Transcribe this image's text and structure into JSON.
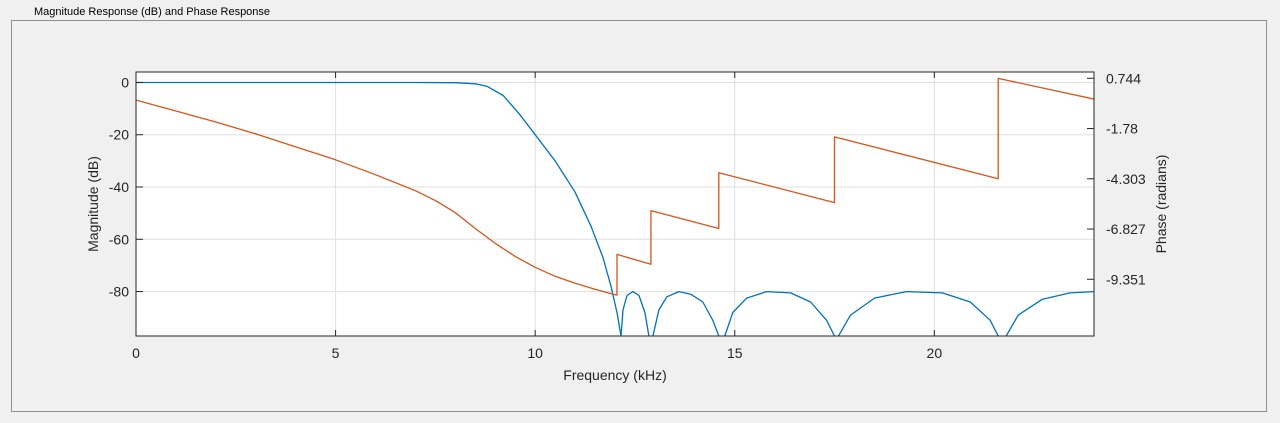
{
  "panel": {
    "title": "Magnitude Response (dB) and Phase Response"
  },
  "chart_data": {
    "type": "line",
    "title": "Magnitude Response (dB) and Phase Response",
    "xlabel": "Frequency (kHz)",
    "ylabel_left": "Magnitude (dB)",
    "ylabel_right": "Phase (radians)",
    "xlim": [
      0,
      24
    ],
    "ylim_left": [
      -97,
      4
    ],
    "ylim_right": [
      -12.2,
      1.06
    ],
    "grid": true,
    "x_ticks": [
      0,
      5,
      10,
      15,
      20
    ],
    "x_tick_labels": [
      "0",
      "5",
      "10",
      "15",
      "20"
    ],
    "y_ticks_left": [
      0,
      -20,
      -40,
      -60,
      -80
    ],
    "y_tick_labels_left": [
      "0",
      "-20",
      "-40",
      "-60",
      "-80"
    ],
    "y_ticks_right": [
      0.744,
      -1.78,
      -4.303,
      -6.827,
      -9.351
    ],
    "y_tick_labels_right": [
      "0.744",
      "-1.78",
      "-4.303",
      "-6.827",
      "-9.351"
    ],
    "series": [
      {
        "name": "Magnitude",
        "axis": "left",
        "color": "#0072bd",
        "segments": [
          [
            [
              0,
              0
            ],
            [
              7,
              0
            ],
            [
              8,
              -0.1
            ],
            [
              8.5,
              -0.5
            ],
            [
              8.8,
              -1.5
            ],
            [
              9.2,
              -5
            ],
            [
              9.6,
              -12
            ],
            [
              10,
              -20
            ],
            [
              10.5,
              -30
            ],
            [
              11,
              -42
            ],
            [
              11.4,
              -55
            ],
            [
              11.7,
              -67
            ],
            [
              11.9,
              -78
            ],
            [
              12.05,
              -88
            ],
            [
              12.15,
              -97
            ]
          ],
          [
            [
              12.15,
              -97
            ],
            [
              12.2,
              -87
            ],
            [
              12.3,
              -81.5
            ],
            [
              12.45,
              -80
            ],
            [
              12.6,
              -81.5
            ],
            [
              12.75,
              -88
            ],
            [
              12.85,
              -97
            ]
          ],
          [
            [
              12.95,
              -97
            ],
            [
              13.1,
              -87
            ],
            [
              13.3,
              -82
            ],
            [
              13.6,
              -80
            ],
            [
              13.9,
              -81
            ],
            [
              14.2,
              -84
            ],
            [
              14.45,
              -91
            ],
            [
              14.6,
              -97
            ]
          ],
          [
            [
              14.75,
              -97
            ],
            [
              14.95,
              -88
            ],
            [
              15.3,
              -82.5
            ],
            [
              15.8,
              -80
            ],
            [
              16.4,
              -80.5
            ],
            [
              16.9,
              -84
            ],
            [
              17.3,
              -91
            ],
            [
              17.5,
              -97
            ]
          ],
          [
            [
              17.6,
              -97
            ],
            [
              17.9,
              -89
            ],
            [
              18.5,
              -82.5
            ],
            [
              19.3,
              -80
            ],
            [
              20.2,
              -80.5
            ],
            [
              20.9,
              -84
            ],
            [
              21.4,
              -91
            ],
            [
              21.6,
              -97
            ]
          ],
          [
            [
              21.8,
              -97
            ],
            [
              22.1,
              -89
            ],
            [
              22.7,
              -83
            ],
            [
              23.4,
              -80.5
            ],
            [
              24,
              -80
            ]
          ]
        ]
      },
      {
        "name": "Phase",
        "axis": "right",
        "color": "#d95319",
        "segments": [
          [
            [
              0,
              -0.35
            ],
            [
              1,
              -0.9
            ],
            [
              2,
              -1.45
            ],
            [
              3,
              -2.05
            ],
            [
              4,
              -2.7
            ],
            [
              5,
              -3.35
            ],
            [
              6,
              -4.1
            ],
            [
              7,
              -4.9
            ],
            [
              7.5,
              -5.4
            ],
            [
              8,
              -6.0
            ],
            [
              8.5,
              -6.8
            ],
            [
              9,
              -7.55
            ],
            [
              9.5,
              -8.2
            ],
            [
              10,
              -8.75
            ],
            [
              10.5,
              -9.2
            ],
            [
              11,
              -9.55
            ],
            [
              11.5,
              -9.85
            ],
            [
              12.05,
              -10.15
            ]
          ],
          [
            [
              12.05,
              -10.15
            ],
            [
              12.05,
              -8.1
            ],
            [
              12.9,
              -8.6
            ],
            [
              12.9,
              -5.9
            ],
            [
              14.6,
              -6.8
            ],
            [
              14.6,
              -4.0
            ],
            [
              17.5,
              -5.5
            ],
            [
              17.5,
              -2.2
            ],
            [
              21.6,
              -4.3
            ],
            [
              21.6,
              0.74
            ],
            [
              24,
              -0.3
            ]
          ]
        ]
      }
    ]
  }
}
